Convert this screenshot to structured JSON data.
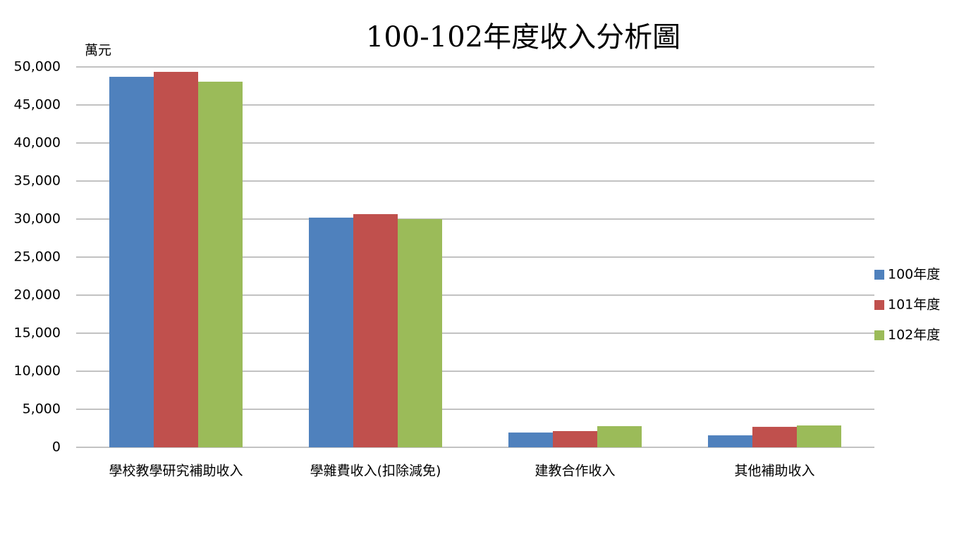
{
  "chart_data": {
    "type": "bar",
    "title": "100-102年度收入分析圖",
    "y_label": "萬元",
    "categories": [
      "學校教學研究補助收入",
      "學雜費收入(扣除減免)",
      "建教合作收入",
      "其他補助收入"
    ],
    "series": [
      {
        "name": "100年度",
        "color": "#4f81bd",
        "values": [
          48700,
          30190,
          1940,
          1570
        ]
      },
      {
        "name": "101年度",
        "color": "#c0504d",
        "values": [
          49350,
          30650,
          2130,
          2690
        ]
      },
      {
        "name": "102年度",
        "color": "#9bbb59",
        "values": [
          48060,
          30000,
          2780,
          2870
        ]
      }
    ],
    "ylim": [
      0,
      50000
    ],
    "yticks": [
      0,
      {
        "value": 5000,
        "label": "5,000"
      },
      {
        "value": 10000,
        "label": "10,000"
      },
      {
        "value": 15000,
        "label": "15,000"
      },
      {
        "value": 20000,
        "label": "20,000"
      },
      {
        "value": 25000,
        "label": "25,000"
      },
      {
        "value": 30000,
        "label": "30,000"
      },
      {
        "value": 35000,
        "label": "35,000"
      },
      {
        "value": 40000,
        "label": "40,000"
      },
      {
        "value": 45000,
        "label": "45,000"
      },
      {
        "value": 50000,
        "label": "50,000"
      }
    ],
    "grid": true,
    "legend": "right"
  }
}
